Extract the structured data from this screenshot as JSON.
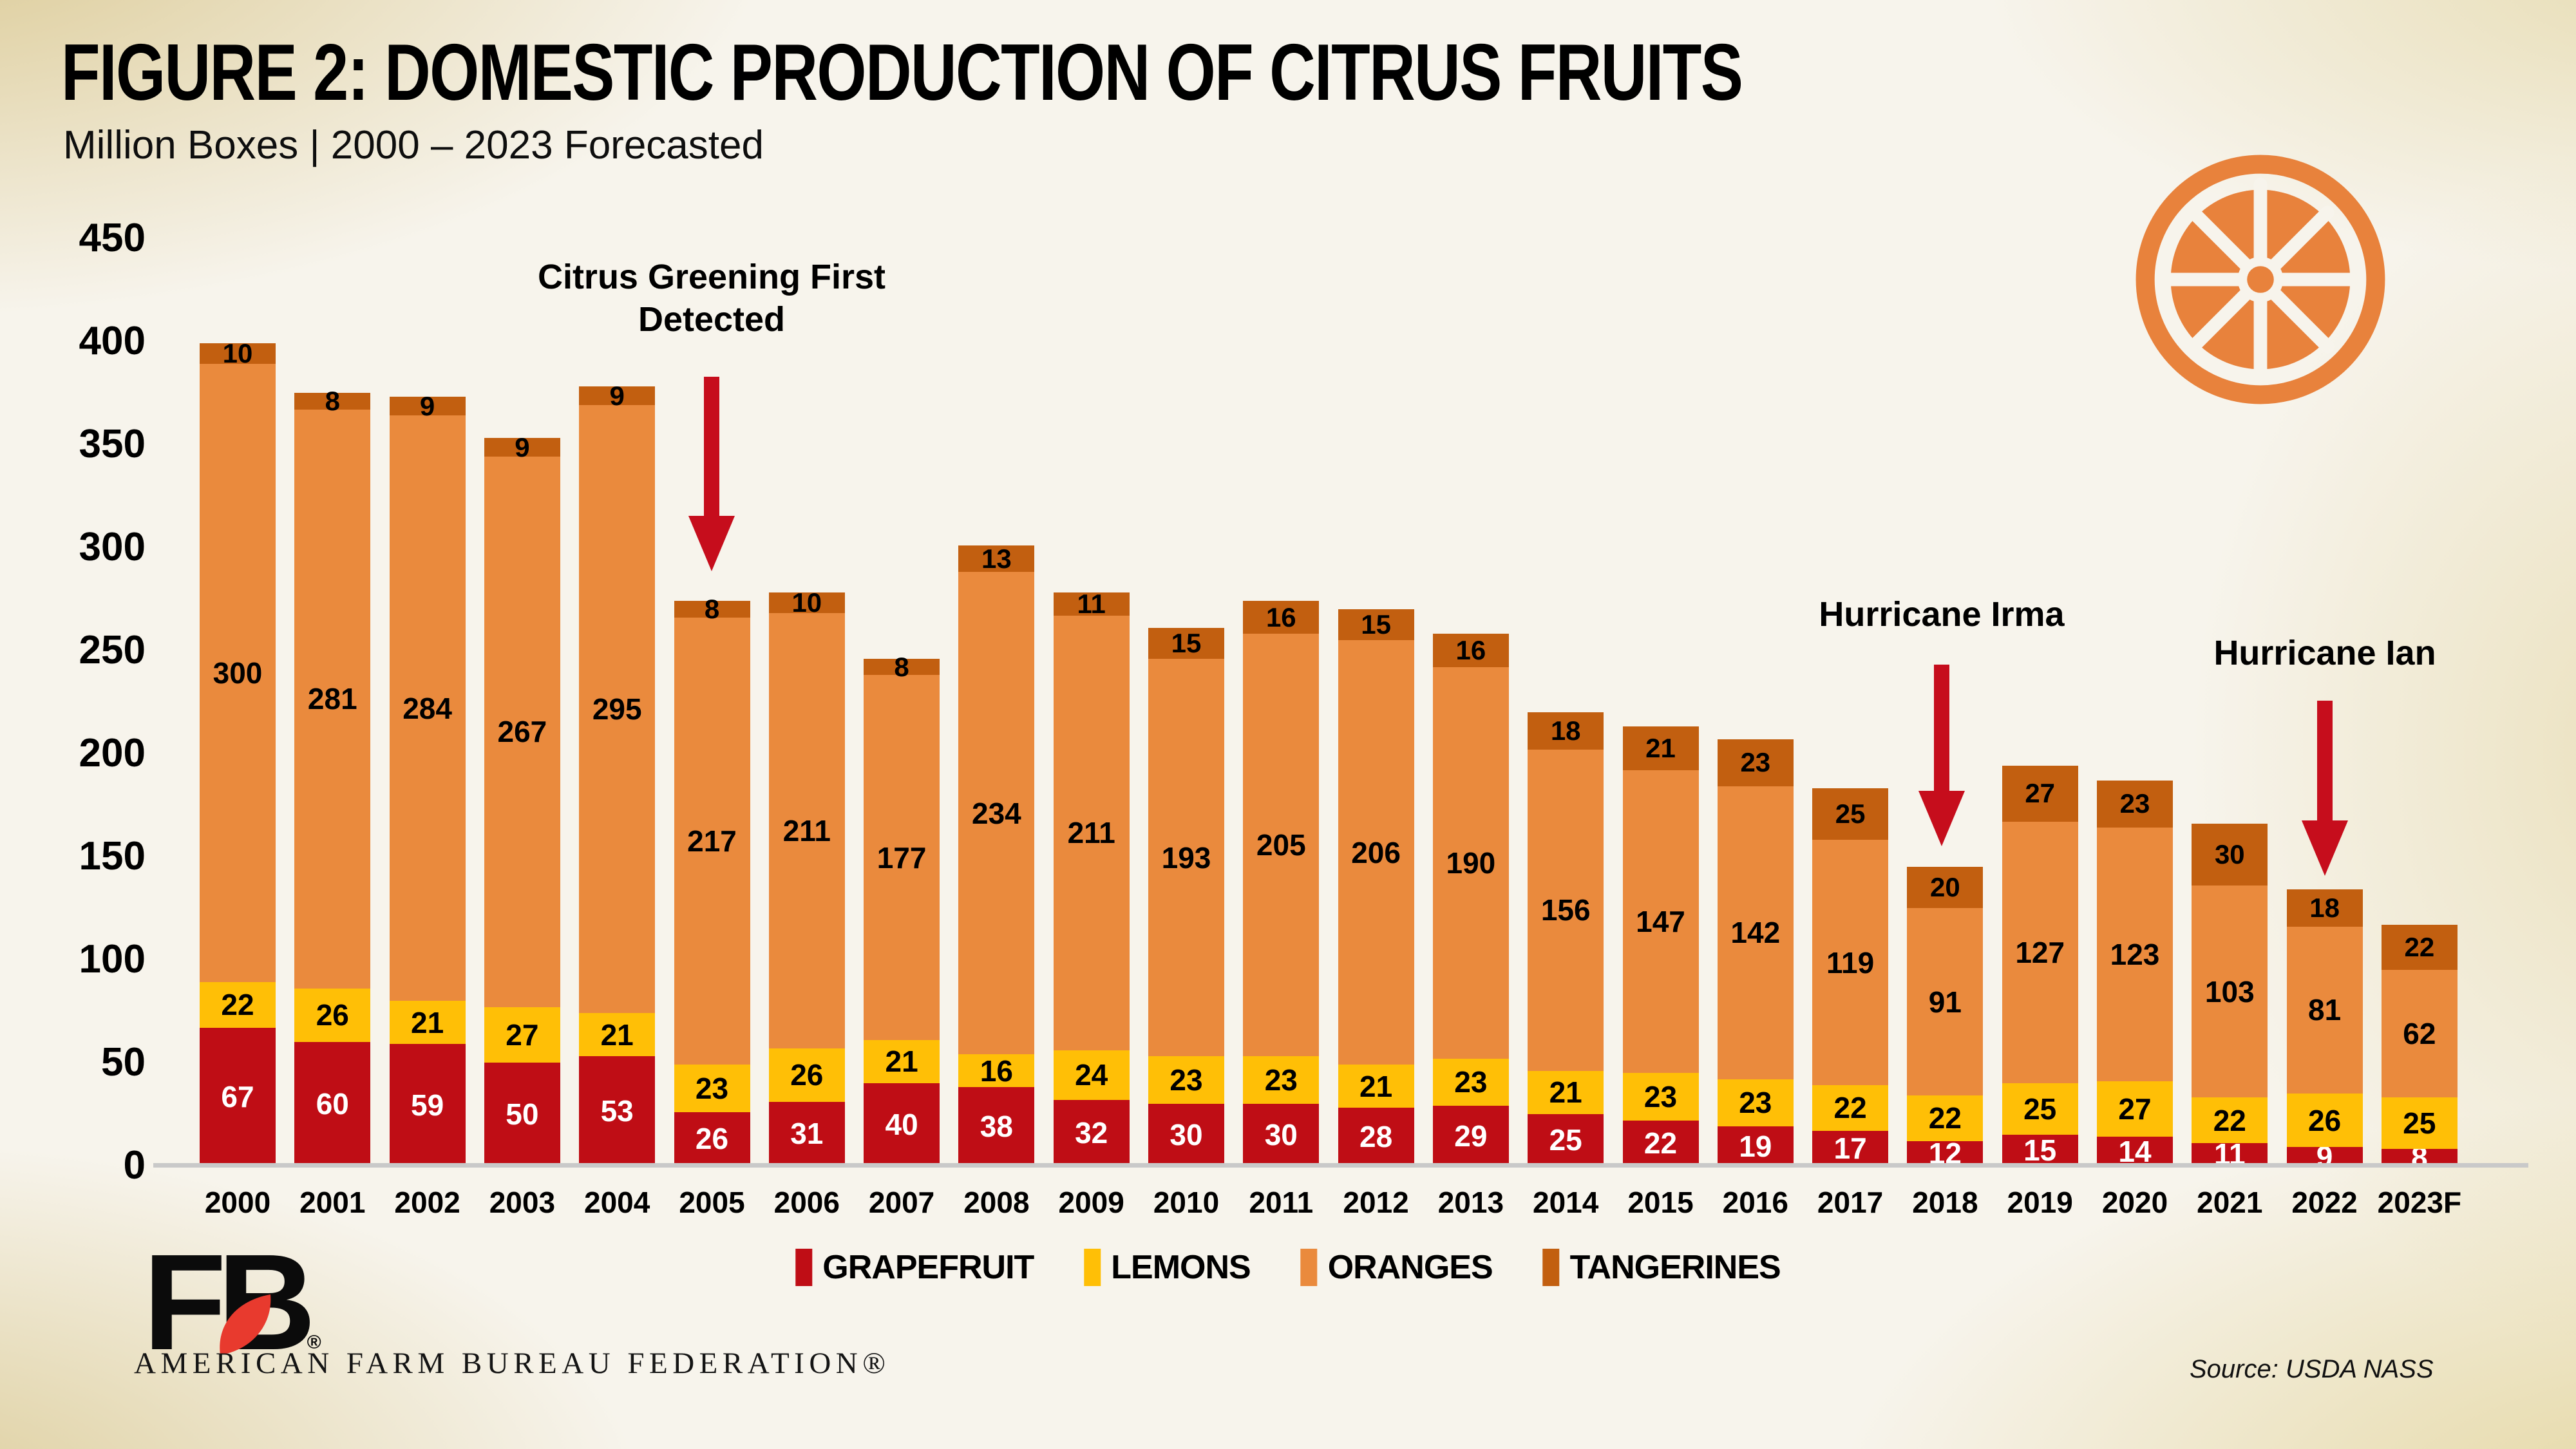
{
  "header": {
    "title": "FIGURE 2: DOMESTIC PRODUCTION OF CITRUS FRUITS",
    "subtitle": "Million Boxes | 2000 – 2023 Forecasted"
  },
  "y_axis": {
    "ticks": [
      450,
      400,
      350,
      300,
      250,
      200,
      150,
      100,
      50,
      0
    ]
  },
  "legend": [
    {
      "label": "GRAPEFRUIT",
      "color": "#BF0D15"
    },
    {
      "label": "LEMONS",
      "color": "#FFBF06"
    },
    {
      "label": "ORANGES",
      "color": "#EA8A3D"
    },
    {
      "label": "TANGERINES",
      "color": "#C25F10"
    }
  ],
  "annotations": {
    "citrus_line1": "Citrus Greening First",
    "citrus_line2": "Detected",
    "irma": "Hurricane Irma",
    "ian": "Hurricane Ian",
    "arrow_color": "#C60D1C"
  },
  "icons": {
    "orange_slice_color": "#E8823C",
    "fb_monogram": "FB",
    "fb_reg": "®",
    "fb_leaf_color": "#E83A2E"
  },
  "footer": {
    "org": "AMERICAN FARM BUREAU FEDERATION®",
    "source": "Source: USDA NASS"
  },
  "chart_data": {
    "type": "bar",
    "stacked": true,
    "title": "FIGURE 2: DOMESTIC PRODUCTION OF CITRUS FRUITS",
    "ylabel": "Million Boxes",
    "ylim": [
      0,
      450
    ],
    "tick_step": 50,
    "grid": false,
    "legend_position": "bottom",
    "categories": [
      "2000",
      "2001",
      "2002",
      "2003",
      "2004",
      "2005",
      "2006",
      "2007",
      "2008",
      "2009",
      "2010",
      "2011",
      "2012",
      "2013",
      "2014",
      "2015",
      "2016",
      "2017",
      "2018",
      "2019",
      "2020",
      "2021",
      "2022",
      "2023F"
    ],
    "series": [
      {
        "name": "GRAPEFRUIT",
        "color": "#BF0D15",
        "values": [
          67,
          60,
          59,
          50,
          53,
          26,
          31,
          40,
          38,
          32,
          30,
          30,
          28,
          29,
          25,
          22,
          19,
          17,
          12,
          15,
          14,
          11,
          9,
          8
        ]
      },
      {
        "name": "LEMONS",
        "color": "#FFBF06",
        "values": [
          22,
          26,
          21,
          27,
          21,
          23,
          26,
          21,
          16,
          24,
          23,
          23,
          21,
          23,
          21,
          23,
          23,
          22,
          22,
          25,
          27,
          22,
          26,
          25
        ]
      },
      {
        "name": "ORANGES",
        "color": "#EA8A3D",
        "values": [
          300,
          281,
          284,
          267,
          295,
          217,
          211,
          177,
          234,
          211,
          193,
          205,
          206,
          190,
          156,
          147,
          142,
          119,
          91,
          127,
          123,
          103,
          81,
          62
        ]
      },
      {
        "name": "TANGERINES",
        "color": "#C25F10",
        "values": [
          10,
          8,
          9,
          9,
          9,
          8,
          10,
          8,
          13,
          11,
          15,
          16,
          15,
          16,
          18,
          21,
          23,
          25,
          20,
          27,
          23,
          30,
          18,
          22
        ]
      }
    ],
    "event_annotations": [
      {
        "text": "Citrus Greening First Detected",
        "category": "2005"
      },
      {
        "text": "Hurricane Irma",
        "category": "2018"
      },
      {
        "text": "Hurricane Ian",
        "category": "2022"
      }
    ]
  }
}
